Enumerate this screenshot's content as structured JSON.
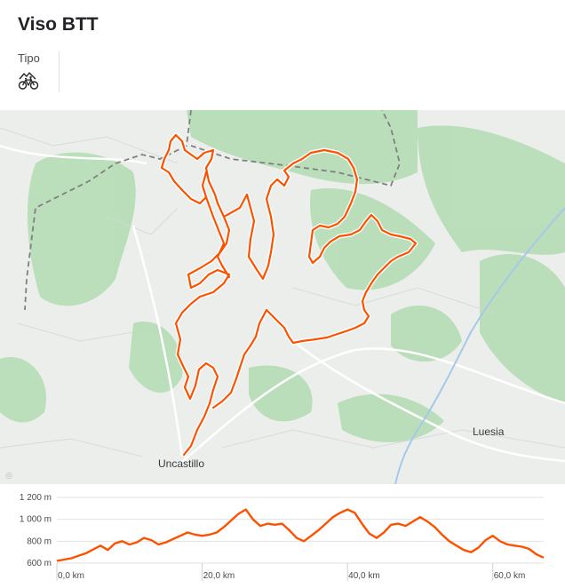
{
  "header": {
    "title": "Viso BTT",
    "tipo_label": "Tipo",
    "tipo_icon": "mountain-bike-icon"
  },
  "map": {
    "towns": [
      {
        "name": "Uncastillo"
      },
      {
        "name": "Luesia"
      }
    ],
    "attribution_icon": "mapbox-logo-icon",
    "route_color": "#fc5200",
    "border_line_color": "#808080"
  },
  "elevation": {
    "y_ticks": [
      "1 200 m",
      "1 000 m",
      "800 m",
      "600 m"
    ],
    "x_ticks": [
      "0,0 km",
      "20,0 km",
      "40,0 km",
      "60,0 km"
    ],
    "y_min": 600,
    "y_max": 1200,
    "x_max_km": 67,
    "line_color": "#fc5200",
    "profile": [
      [
        0,
        620
      ],
      [
        2,
        645
      ],
      [
        4,
        690
      ],
      [
        6,
        760
      ],
      [
        7,
        720
      ],
      [
        8,
        780
      ],
      [
        9,
        800
      ],
      [
        10,
        770
      ],
      [
        11,
        790
      ],
      [
        12,
        830
      ],
      [
        13,
        810
      ],
      [
        14,
        770
      ],
      [
        15,
        790
      ],
      [
        16,
        820
      ],
      [
        17,
        850
      ],
      [
        18,
        880
      ],
      [
        19,
        860
      ],
      [
        20,
        850
      ],
      [
        21,
        860
      ],
      [
        22,
        880
      ],
      [
        23,
        930
      ],
      [
        24,
        990
      ],
      [
        25,
        1050
      ],
      [
        26,
        1090
      ],
      [
        27,
        1000
      ],
      [
        28,
        940
      ],
      [
        29,
        960
      ],
      [
        30,
        950
      ],
      [
        31,
        960
      ],
      [
        32,
        900
      ],
      [
        33,
        830
      ],
      [
        34,
        800
      ],
      [
        35,
        850
      ],
      [
        36,
        900
      ],
      [
        37,
        960
      ],
      [
        38,
        1020
      ],
      [
        39,
        1060
      ],
      [
        40,
        1090
      ],
      [
        41,
        1060
      ],
      [
        42,
        960
      ],
      [
        43,
        870
      ],
      [
        44,
        830
      ],
      [
        45,
        880
      ],
      [
        46,
        950
      ],
      [
        47,
        960
      ],
      [
        48,
        940
      ],
      [
        49,
        980
      ],
      [
        50,
        1020
      ],
      [
        51,
        980
      ],
      [
        52,
        930
      ],
      [
        53,
        860
      ],
      [
        54,
        800
      ],
      [
        55,
        760
      ],
      [
        56,
        720
      ],
      [
        57,
        700
      ],
      [
        58,
        740
      ],
      [
        59,
        810
      ],
      [
        60,
        850
      ],
      [
        61,
        800
      ],
      [
        62,
        770
      ],
      [
        63,
        760
      ],
      [
        64,
        750
      ],
      [
        65,
        730
      ],
      [
        66,
        680
      ],
      [
        67,
        650
      ]
    ]
  }
}
